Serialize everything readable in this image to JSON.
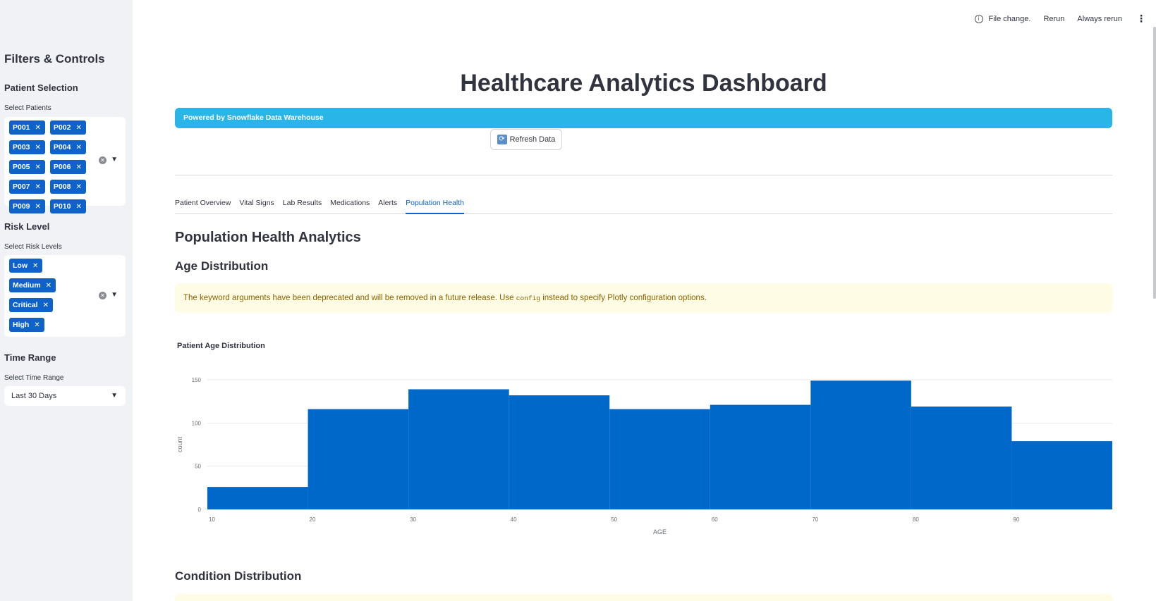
{
  "sidebar": {
    "title": "Filters & Controls",
    "patient_section": "Patient Selection",
    "patient_label": "Select Patients",
    "patients": [
      "P001",
      "P002",
      "P003",
      "P004",
      "P005",
      "P006",
      "P007",
      "P008",
      "P009",
      "P010"
    ],
    "risk_section": "Risk Level",
    "risk_label": "Select Risk Levels",
    "risks": [
      "Low",
      "Medium",
      "Critical",
      "High"
    ],
    "time_section": "Time Range",
    "time_label": "Select Time Range",
    "time_value": "Last 30 Days"
  },
  "topbar": {
    "status": "File change.",
    "rerun": "Rerun",
    "always_rerun": "Always rerun"
  },
  "main": {
    "title": "Healthcare Analytics Dashboard",
    "banner": "Powered by Snowflake Data Warehouse",
    "refresh_label": "Refresh Data",
    "tabs": [
      "Patient Overview",
      "Vital Signs",
      "Lab Results",
      "Medications",
      "Alerts",
      "Population Health"
    ],
    "active_tab": "Population Health",
    "section_title": "Population Health Analytics",
    "age_heading": "Age Distribution",
    "warning_pre": "The keyword arguments have been deprecated and will be removed in a future release. Use ",
    "warning_code": "config",
    "warning_post": " instead to specify Plotly configuration options.",
    "condition_heading": "Condition Distribution"
  },
  "colors": {
    "accent": "#0f62c9",
    "banner": "#29b5e8",
    "bar": "#0068c9",
    "warning_bg": "#fffce6",
    "warning_text": "#8a6200"
  },
  "chart_data": {
    "type": "bar",
    "title": "Patient Age Distribution",
    "xlabel": "AGE",
    "ylabel": "count",
    "bins": [
      [
        10,
        20
      ],
      [
        20,
        30
      ],
      [
        30,
        40
      ],
      [
        40,
        50
      ],
      [
        50,
        60
      ],
      [
        60,
        70
      ],
      [
        70,
        80
      ],
      [
        80,
        90
      ],
      [
        90,
        100
      ]
    ],
    "values": [
      26,
      116,
      139,
      132,
      116,
      121,
      149,
      119,
      79
    ],
    "xticks": [
      10,
      20,
      30,
      40,
      50,
      60,
      70,
      80,
      90
    ],
    "yticks": [
      0,
      50,
      100,
      150
    ],
    "xlim": [
      10,
      100
    ],
    "ylim": [
      0,
      150
    ],
    "grid": true
  }
}
